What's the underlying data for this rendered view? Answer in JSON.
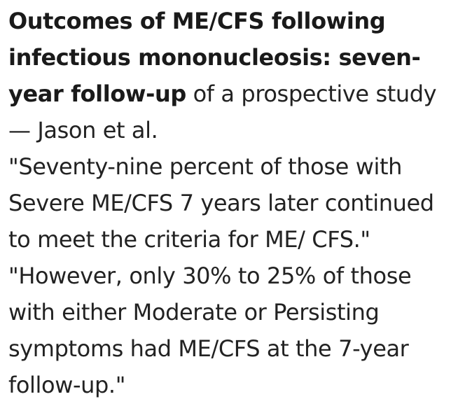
{
  "post": {
    "article_title": "Outcomes of ME/CFS following infectious mononucleosis: seven-year follow-up",
    "article_rest": " of a prospective study — Jason et al.",
    "quote_1": "\"Seventy-nine percent of those with Severe ME/CFS 7 years later continued to meet the criteria for ME/ CFS.\"",
    "quote_2": " \"However, only 30% to 25% of those with either Moderate or Persisting symptoms had ME/CFS at the 7-year follow-up.\""
  }
}
